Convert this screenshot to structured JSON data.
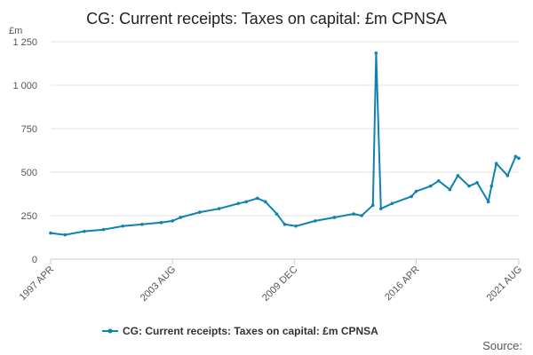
{
  "chart_data": {
    "type": "line",
    "title": "CG: Current receipts: Taxes on capital: £m CPNSA",
    "y_unit": "£m",
    "xlabel": "",
    "ylabel": "",
    "ylim": [
      0,
      1250
    ],
    "y_ticks": [
      {
        "value": 0,
        "label": "0"
      },
      {
        "value": 250,
        "label": "250"
      },
      {
        "value": 500,
        "label": "500"
      },
      {
        "value": 750,
        "label": "750"
      },
      {
        "value": 1000,
        "label": "1 000"
      },
      {
        "value": 1250,
        "label": "1 250"
      }
    ],
    "x_ticks": [
      {
        "value": "1997-04",
        "label": "1997 APR"
      },
      {
        "value": "2003-08",
        "label": "2003 AUG"
      },
      {
        "value": "2009-12",
        "label": "2009 DEC"
      },
      {
        "value": "2016-04",
        "label": "2016 APR"
      },
      {
        "value": "2021-08",
        "label": "2021 AUG"
      }
    ],
    "grid": true,
    "legend_position": "bottom",
    "series": [
      {
        "name": "CG: Current receipts: Taxes on capital: £m CPNSA",
        "color": "#0f82b4",
        "x": [
          "1997-04",
          "1998-01",
          "1999-01",
          "2000-01",
          "2001-01",
          "2002-01",
          "2003-01",
          "2003-08",
          "2004-01",
          "2005-01",
          "2006-01",
          "2007-01",
          "2007-06",
          "2008-01",
          "2008-06",
          "2009-01",
          "2009-06",
          "2010-01",
          "2011-01",
          "2012-01",
          "2013-01",
          "2013-06",
          "2014-01",
          "2014-03",
          "2014-06",
          "2015-01",
          "2016-01",
          "2016-04",
          "2017-01",
          "2017-06",
          "2018-01",
          "2018-06",
          "2019-01",
          "2019-06",
          "2020-01",
          "2020-03",
          "2020-06",
          "2021-01",
          "2021-06",
          "2021-08"
        ],
        "values": [
          150,
          140,
          160,
          170,
          190,
          200,
          210,
          220,
          240,
          270,
          290,
          320,
          330,
          350,
          330,
          260,
          200,
          190,
          220,
          240,
          260,
          250,
          310,
          1185,
          290,
          320,
          360,
          390,
          420,
          450,
          400,
          480,
          420,
          440,
          330,
          420,
          550,
          480,
          590,
          580
        ]
      }
    ]
  },
  "source_label": "Source:"
}
